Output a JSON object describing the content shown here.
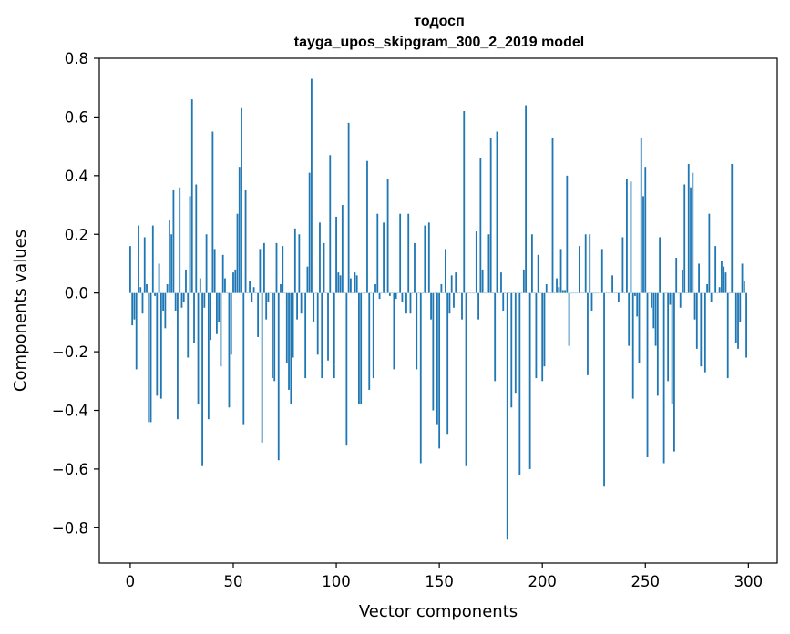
{
  "chart_data": {
    "type": "bar",
    "title": "тодосп",
    "subtitle": "tayga_upos_skipgram_300_2_2019 model",
    "xlabel": "Vector components",
    "ylabel": "Components values",
    "xlim": [
      -15,
      314
    ],
    "ylim": [
      -0.92,
      0.8
    ],
    "xticks": [
      0,
      50,
      100,
      150,
      200,
      250,
      300
    ],
    "yticks": [
      -0.8,
      -0.6,
      -0.4,
      -0.2,
      0.0,
      0.2,
      0.4,
      0.6,
      0.8
    ],
    "ytick_labels": [
      "−0.8",
      "−0.6",
      "−0.4",
      "−0.2",
      "0.0",
      "0.2",
      "0.4",
      "0.6",
      "0.8"
    ],
    "grid": false,
    "legend": "none",
    "color": "#1f77b4",
    "values": [
      0.16,
      -0.11,
      -0.09,
      -0.26,
      0.23,
      0.02,
      -0.07,
      0.19,
      0.03,
      -0.44,
      -0.44,
      0.23,
      -0.01,
      -0.35,
      0.1,
      -0.36,
      -0.06,
      -0.12,
      0.03,
      0.25,
      0.2,
      0.35,
      -0.06,
      -0.43,
      0.36,
      -0.05,
      -0.03,
      0.08,
      -0.22,
      0.33,
      0.66,
      -0.17,
      0.37,
      -0.38,
      0.05,
      -0.59,
      -0.05,
      0.2,
      -0.43,
      -0.16,
      0.55,
      0.15,
      -0.14,
      -0.1,
      -0.25,
      0.13,
      0.05,
      0.0,
      -0.39,
      -0.21,
      0.07,
      0.08,
      0.27,
      0.43,
      0.63,
      -0.45,
      0.35,
      0.0,
      0.04,
      -0.03,
      0.02,
      0.0,
      -0.15,
      0.15,
      -0.51,
      0.17,
      -0.09,
      -0.03,
      0.0,
      -0.29,
      -0.3,
      0.17,
      -0.57,
      0.03,
      0.16,
      0.0,
      -0.24,
      -0.33,
      -0.38,
      -0.22,
      0.22,
      -0.09,
      0.2,
      -0.07,
      0.0,
      -0.29,
      0.09,
      0.41,
      0.73,
      -0.1,
      0.0,
      -0.21,
      0.24,
      -0.29,
      0.17,
      0.0,
      -0.23,
      0.47,
      0.0,
      -0.29,
      0.26,
      0.07,
      0.06,
      0.3,
      0.0,
      -0.52,
      0.58,
      0.05,
      0.0,
      0.07,
      0.06,
      -0.38,
      -0.38,
      0.0,
      0.0,
      0.45,
      -0.33,
      0.0,
      -0.29,
      0.03,
      0.27,
      -0.02,
      0.0,
      0.24,
      0.0,
      0.39,
      -0.01,
      0.0,
      -0.26,
      -0.02,
      0.0,
      0.27,
      -0.03,
      0.0,
      -0.07,
      0.27,
      -0.07,
      0.0,
      0.17,
      -0.26,
      0.0,
      -0.58,
      0.0,
      0.23,
      0.0,
      0.24,
      -0.09,
      -0.4,
      0.0,
      -0.45,
      -0.53,
      0.03,
      0.0,
      0.15,
      -0.48,
      -0.07,
      0.06,
      -0.05,
      0.07,
      0.0,
      0.0,
      -0.09,
      0.62,
      -0.59,
      0.0,
      0.0,
      0.0,
      0.0,
      0.21,
      -0.09,
      0.46,
      0.08,
      0.0,
      0.0,
      0.2,
      0.53,
      0.0,
      -0.3,
      0.55,
      0.0,
      0.07,
      -0.06,
      0.0,
      -0.84,
      0.0,
      -0.39,
      0.0,
      -0.34,
      0.0,
      -0.62,
      0.0,
      0.08,
      0.64,
      0.0,
      -0.6,
      0.2,
      0.0,
      -0.29,
      0.13,
      0.0,
      -0.3,
      -0.25,
      0.03,
      0.0,
      0.0,
      0.53,
      0.0,
      0.05,
      0.02,
      0.15,
      0.01,
      0.01,
      0.4,
      -0.18,
      0.0,
      0.0,
      0.0,
      0.0,
      0.16,
      0.0,
      0.0,
      0.2,
      -0.28,
      0.2,
      -0.06,
      0.0,
      0.0,
      0.0,
      0.0,
      0.15,
      -0.66,
      0.0,
      0.0,
      0.0,
      0.06,
      0.0,
      0.0,
      -0.03,
      0.0,
      0.19,
      0.0,
      0.39,
      -0.18,
      0.38,
      -0.36,
      -0.01,
      -0.08,
      -0.24,
      0.53,
      0.33,
      0.43,
      -0.56,
      0.0,
      -0.05,
      -0.12,
      -0.18,
      -0.35,
      0.19,
      0.0,
      -0.58,
      0.0,
      -0.3,
      -0.04,
      -0.38,
      -0.54,
      0.12,
      0.0,
      -0.05,
      0.08,
      0.37,
      0.0,
      0.44,
      0.36,
      0.41,
      -0.09,
      -0.19,
      0.1,
      -0.25,
      0.0,
      -0.27,
      0.03,
      0.27,
      -0.03,
      0.0,
      0.16,
      0.0,
      0.02,
      0.11,
      0.09,
      0.07,
      -0.29,
      0.0,
      0.44,
      0.0,
      -0.17,
      -0.19,
      -0.1,
      0.1,
      0.04,
      -0.22
    ]
  }
}
